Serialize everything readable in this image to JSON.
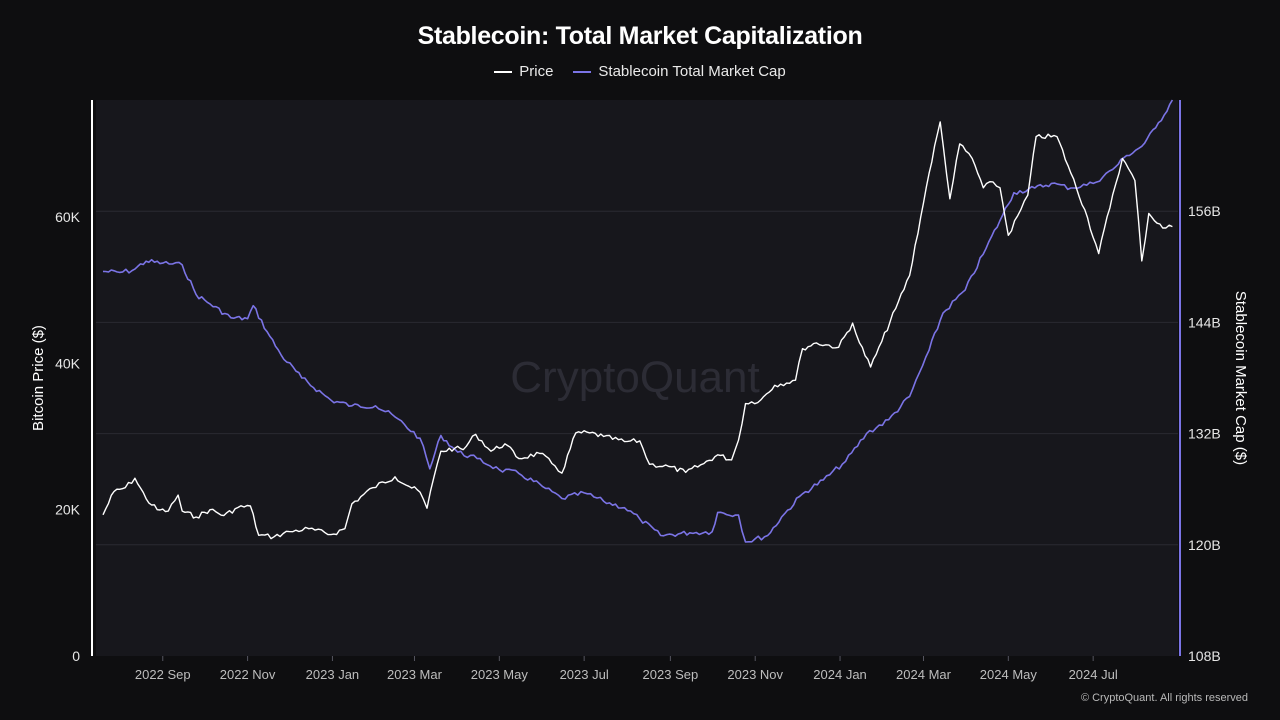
{
  "chart_data": {
    "type": "line",
    "title": "Stablecoin: Total Market Capitalization",
    "watermark": "CryptoQuant",
    "copyright": "© CryptoQuant. All rights reserved",
    "colors": {
      "price": "#ffffff",
      "stablecoin": "#7b74e6",
      "plot_bg": "#17171c",
      "page_bg": "#0e0e10",
      "grid": "#2a2a31"
    },
    "legend": [
      "Price",
      "Stablecoin Total Market Cap"
    ],
    "x_axis": {
      "range": [
        "2022-07-15",
        "2024-08-31"
      ],
      "ticks": [
        {
          "date": "2022-09-01",
          "label": "2022 Sep"
        },
        {
          "date": "2022-11-01",
          "label": "2022 Nov"
        },
        {
          "date": "2023-01-01",
          "label": "2023 Jan"
        },
        {
          "date": "2023-03-01",
          "label": "2023 Mar"
        },
        {
          "date": "2023-05-01",
          "label": "2023 May"
        },
        {
          "date": "2023-07-01",
          "label": "2023 Jul"
        },
        {
          "date": "2023-09-01",
          "label": "2023 Sep"
        },
        {
          "date": "2023-11-01",
          "label": "2023 Nov"
        },
        {
          "date": "2024-01-01",
          "label": "2024 Jan"
        },
        {
          "date": "2024-03-01",
          "label": "2024 Mar"
        },
        {
          "date": "2024-05-01",
          "label": "2024 May"
        },
        {
          "date": "2024-07-01",
          "label": "2024 Jul"
        }
      ]
    },
    "y_left": {
      "label": "Bitcoin Price ($)",
      "range": [
        0,
        76000
      ],
      "ticks": [
        {
          "v": 0,
          "label": "0"
        },
        {
          "v": 20000,
          "label": "20K"
        },
        {
          "v": 40000,
          "label": "40K"
        },
        {
          "v": 60000,
          "label": "60K"
        }
      ]
    },
    "y_right": {
      "label": "Stablecoin Market Cap ($)",
      "range": [
        108,
        168
      ],
      "ticks": [
        {
          "v": 108,
          "label": "108B"
        },
        {
          "v": 120,
          "label": "120B"
        },
        {
          "v": 132,
          "label": "132B"
        },
        {
          "v": 144,
          "label": "144B"
        },
        {
          "v": 156,
          "label": "156B"
        }
      ]
    },
    "series": [
      {
        "name": "Price",
        "axis": "left",
        "points": [
          [
            "2022-07-20",
            19300
          ],
          [
            "2022-07-28",
            22500
          ],
          [
            "2022-08-05",
            23000
          ],
          [
            "2022-08-12",
            24300
          ],
          [
            "2022-08-20",
            21500
          ],
          [
            "2022-08-28",
            20000
          ],
          [
            "2022-09-05",
            19800
          ],
          [
            "2022-09-12",
            22000
          ],
          [
            "2022-09-15",
            19800
          ],
          [
            "2022-09-25",
            19000
          ],
          [
            "2022-10-05",
            20000
          ],
          [
            "2022-10-15",
            19200
          ],
          [
            "2022-10-25",
            20300
          ],
          [
            "2022-11-03",
            20500
          ],
          [
            "2022-11-09",
            16500
          ],
          [
            "2022-11-20",
            16300
          ],
          [
            "2022-12-01",
            17000
          ],
          [
            "2022-12-15",
            17400
          ],
          [
            "2022-12-31",
            16600
          ],
          [
            "2023-01-10",
            17400
          ],
          [
            "2023-01-15",
            20800
          ],
          [
            "2023-01-30",
            23000
          ],
          [
            "2023-02-15",
            24500
          ],
          [
            "2023-02-25",
            23200
          ],
          [
            "2023-03-05",
            22400
          ],
          [
            "2023-03-10",
            20200
          ],
          [
            "2023-03-15",
            24500
          ],
          [
            "2023-03-20",
            28000
          ],
          [
            "2023-03-30",
            28400
          ],
          [
            "2023-04-05",
            28200
          ],
          [
            "2023-04-14",
            30300
          ],
          [
            "2023-04-25",
            28000
          ],
          [
            "2023-05-05",
            29000
          ],
          [
            "2023-05-15",
            27000
          ],
          [
            "2023-05-30",
            27700
          ],
          [
            "2023-06-10",
            26000
          ],
          [
            "2023-06-15",
            25000
          ],
          [
            "2023-06-25",
            30500
          ],
          [
            "2023-07-05",
            30500
          ],
          [
            "2023-07-15",
            30000
          ],
          [
            "2023-07-30",
            29300
          ],
          [
            "2023-08-10",
            29400
          ],
          [
            "2023-08-17",
            26200
          ],
          [
            "2023-08-31",
            25900
          ],
          [
            "2023-09-12",
            25100
          ],
          [
            "2023-09-25",
            26300
          ],
          [
            "2023-10-05",
            27500
          ],
          [
            "2023-10-15",
            26800
          ],
          [
            "2023-10-20",
            29500
          ],
          [
            "2023-10-25",
            34500
          ],
          [
            "2023-11-05",
            35000
          ],
          [
            "2023-11-15",
            37000
          ],
          [
            "2023-11-30",
            37700
          ],
          [
            "2023-12-05",
            42000
          ],
          [
            "2023-12-15",
            42800
          ],
          [
            "2023-12-31",
            42200
          ],
          [
            "2024-01-10",
            45500
          ],
          [
            "2024-01-15",
            42800
          ],
          [
            "2024-01-23",
            39500
          ],
          [
            "2024-01-31",
            43000
          ],
          [
            "2024-02-10",
            47500
          ],
          [
            "2024-02-20",
            52000
          ],
          [
            "2024-02-28",
            60000
          ],
          [
            "2024-03-05",
            66000
          ],
          [
            "2024-03-13",
            73000
          ],
          [
            "2024-03-20",
            62500
          ],
          [
            "2024-03-27",
            70000
          ],
          [
            "2024-04-05",
            68000
          ],
          [
            "2024-04-13",
            64000
          ],
          [
            "2024-04-20",
            64800
          ],
          [
            "2024-04-25",
            64000
          ],
          [
            "2024-05-01",
            57500
          ],
          [
            "2024-05-10",
            61000
          ],
          [
            "2024-05-15",
            63000
          ],
          [
            "2024-05-21",
            71000
          ],
          [
            "2024-06-05",
            71000
          ],
          [
            "2024-06-15",
            66000
          ],
          [
            "2024-06-25",
            61000
          ],
          [
            "2024-07-05",
            55000
          ],
          [
            "2024-07-15",
            63000
          ],
          [
            "2024-07-22",
            68000
          ],
          [
            "2024-07-31",
            65000
          ],
          [
            "2024-08-05",
            54000
          ],
          [
            "2024-08-10",
            60500
          ],
          [
            "2024-08-20",
            58500
          ],
          [
            "2024-08-27",
            58700
          ]
        ]
      },
      {
        "name": "Stablecoin Total Market Cap",
        "axis": "right",
        "points": [
          [
            "2022-07-20",
            149.5
          ],
          [
            "2022-08-01",
            149.4
          ],
          [
            "2022-08-10",
            149.6
          ],
          [
            "2022-08-20",
            150.6
          ],
          [
            "2022-09-01",
            150.4
          ],
          [
            "2022-09-15",
            150.2
          ],
          [
            "2022-09-25",
            147.0
          ],
          [
            "2022-10-05",
            146.0
          ],
          [
            "2022-10-20",
            144.5
          ],
          [
            "2022-11-01",
            144.4
          ],
          [
            "2022-11-05",
            145.8
          ],
          [
            "2022-11-15",
            143.0
          ],
          [
            "2022-11-25",
            140.5
          ],
          [
            "2022-12-10",
            138.0
          ],
          [
            "2022-12-31",
            135.6
          ],
          [
            "2023-01-15",
            135.0
          ],
          [
            "2023-02-01",
            135.0
          ],
          [
            "2023-02-15",
            133.8
          ],
          [
            "2023-03-05",
            131.5
          ],
          [
            "2023-03-12",
            128.2
          ],
          [
            "2023-03-20",
            131.8
          ],
          [
            "2023-04-01",
            130.0
          ],
          [
            "2023-04-15",
            129.3
          ],
          [
            "2023-05-01",
            128.1
          ],
          [
            "2023-05-15",
            127.7
          ],
          [
            "2023-06-01",
            126.3
          ],
          [
            "2023-06-15",
            125.0
          ],
          [
            "2023-07-01",
            125.6
          ],
          [
            "2023-07-15",
            124.7
          ],
          [
            "2023-07-30",
            124.0
          ],
          [
            "2023-08-10",
            122.8
          ],
          [
            "2023-08-25",
            121.0
          ],
          [
            "2023-09-15",
            121.3
          ],
          [
            "2023-10-01",
            121.4
          ],
          [
            "2023-10-05",
            123.5
          ],
          [
            "2023-10-20",
            123.2
          ],
          [
            "2023-10-25",
            120.3
          ],
          [
            "2023-11-10",
            121.0
          ],
          [
            "2023-11-20",
            123.0
          ],
          [
            "2023-12-05",
            125.5
          ],
          [
            "2023-12-20",
            127.0
          ],
          [
            "2024-01-05",
            129.0
          ],
          [
            "2024-01-20",
            132.0
          ],
          [
            "2024-02-05",
            133.5
          ],
          [
            "2024-02-20",
            136.0
          ],
          [
            "2024-03-05",
            141.0
          ],
          [
            "2024-03-15",
            145.0
          ],
          [
            "2024-03-31",
            147.5
          ],
          [
            "2024-04-15",
            152.0
          ],
          [
            "2024-04-25",
            155.0
          ],
          [
            "2024-05-05",
            158.0
          ],
          [
            "2024-05-20",
            158.5
          ],
          [
            "2024-06-01",
            159.0
          ],
          [
            "2024-06-15",
            158.5
          ],
          [
            "2024-07-01",
            159.0
          ],
          [
            "2024-07-15",
            160.5
          ],
          [
            "2024-07-25",
            162.0
          ],
          [
            "2024-08-05",
            163.0
          ],
          [
            "2024-08-15",
            165.0
          ],
          [
            "2024-08-27",
            168.0
          ]
        ]
      }
    ]
  }
}
